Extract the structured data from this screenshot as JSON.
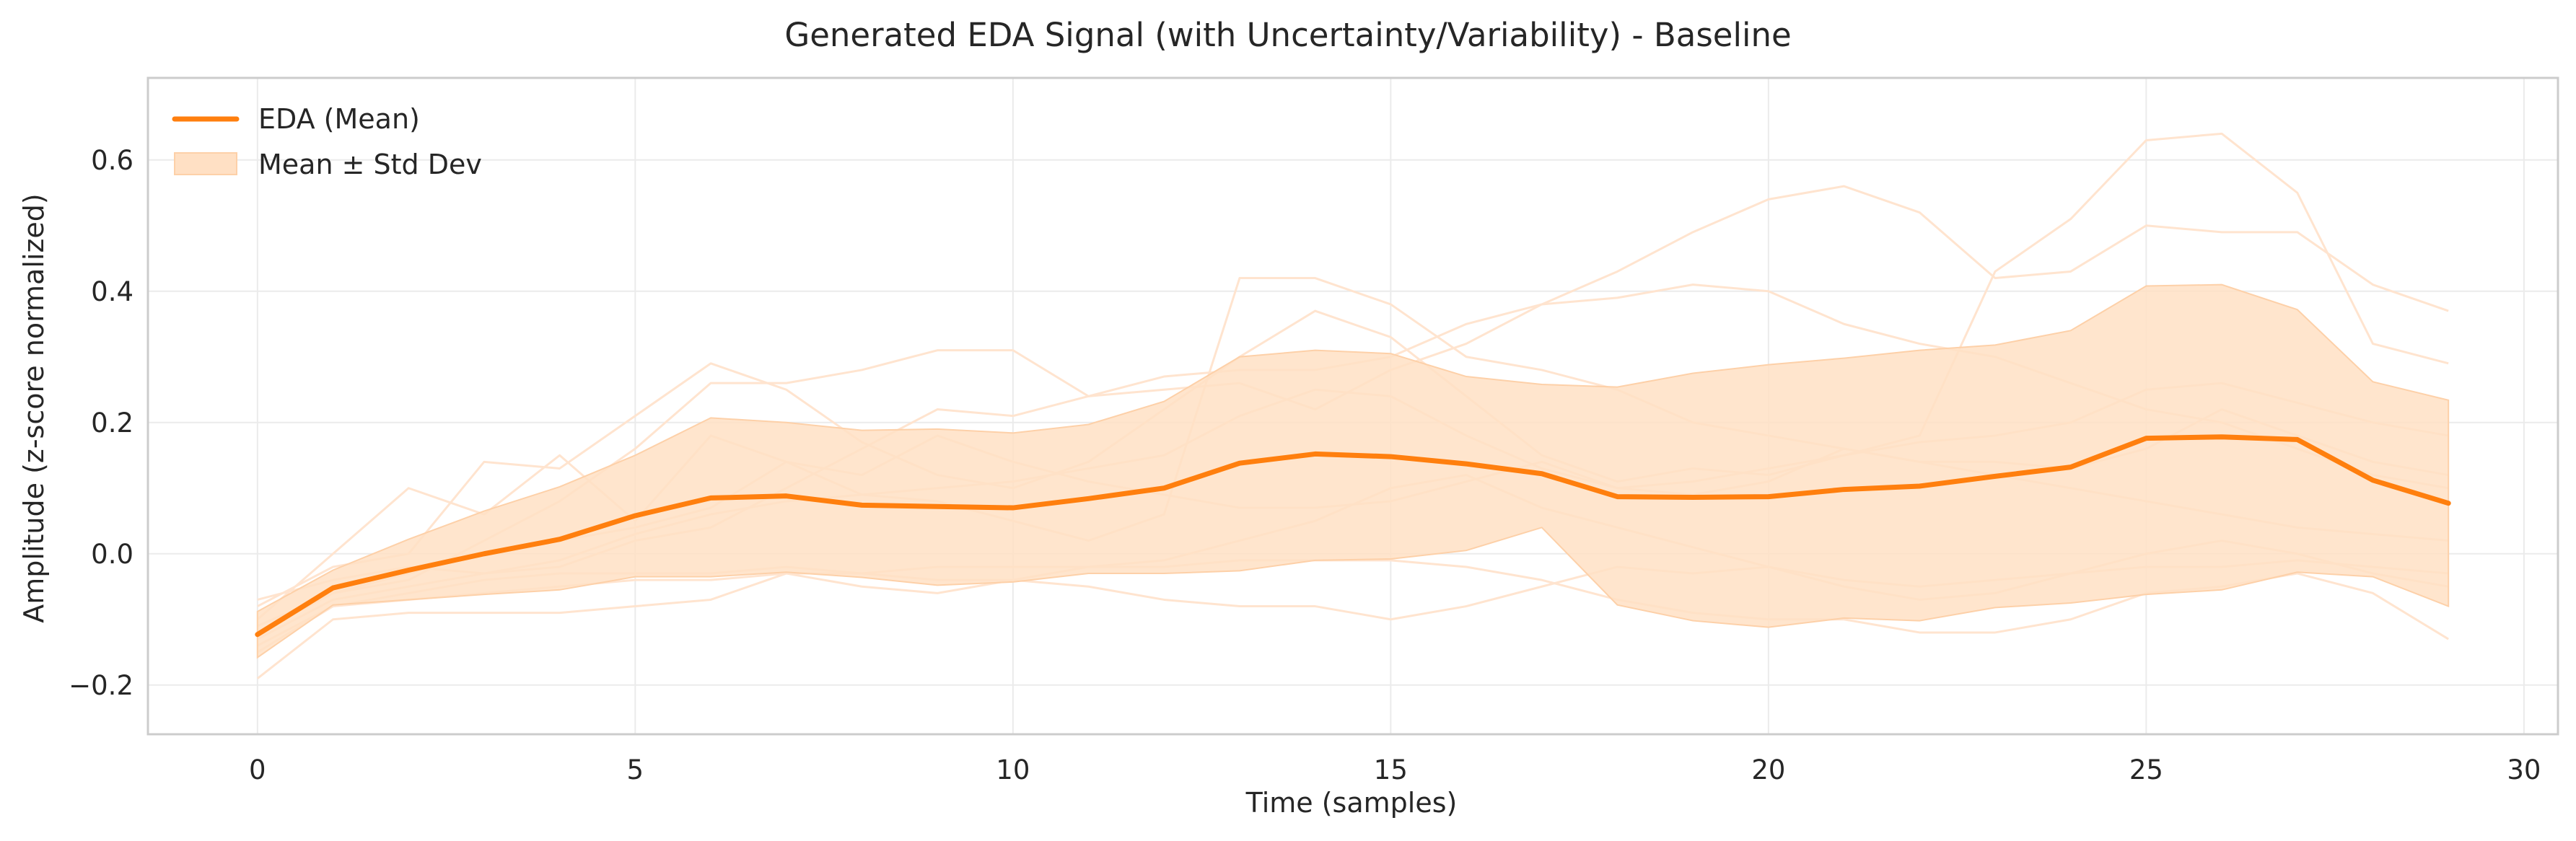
{
  "chart_data": {
    "type": "line",
    "title": "Generated EDA Signal (with Uncertainty/Variability) - Baseline",
    "xlabel": "Time (samples)",
    "ylabel": "Amplitude (z-score normalized)",
    "xlim": [
      -1.45,
      30.45
    ],
    "ylim": [
      -0.275,
      0.725
    ],
    "xticks": [
      0,
      5,
      10,
      15,
      20,
      25,
      30
    ],
    "xtick_labels": [
      "0",
      "5",
      "10",
      "15",
      "20",
      "25",
      "30"
    ],
    "yticks": [
      -0.2,
      0.0,
      0.2,
      0.4,
      0.6
    ],
    "ytick_labels": [
      "−0.2",
      "0.0",
      "0.2",
      "0.4",
      "0.6"
    ],
    "grid": true,
    "legend_position": "top-left",
    "colors": {
      "mean": "#ff7f0e",
      "band": "#ffe0c4",
      "band_edge": "#fdd0a8",
      "samples": "#ffe4cf",
      "frame": "#cccccc",
      "grid": "#ebebeb"
    },
    "x": [
      0,
      1,
      2,
      3,
      4,
      5,
      6,
      7,
      8,
      9,
      10,
      11,
      12,
      13,
      14,
      15,
      16,
      17,
      18,
      19,
      20,
      21,
      22,
      23,
      24,
      25,
      26,
      27,
      28,
      29
    ],
    "series": [
      {
        "name": "EDA (Mean)",
        "role": "mean",
        "values": [
          -0.123,
          -0.052,
          -0.025,
          0.0,
          0.022,
          0.058,
          0.085,
          0.088,
          0.074,
          0.072,
          0.07,
          0.084,
          0.1,
          0.138,
          0.152,
          0.148,
          0.137,
          0.122,
          0.087,
          0.086,
          0.087,
          0.098,
          0.103,
          0.118,
          0.132,
          0.176,
          0.178,
          0.174,
          0.112,
          0.077
        ]
      },
      {
        "name": "Mean ± Std Dev",
        "role": "band",
        "upper": [
          -0.088,
          -0.025,
          0.022,
          0.065,
          0.102,
          0.15,
          0.207,
          0.2,
          0.188,
          0.19,
          0.184,
          0.197,
          0.232,
          0.3,
          0.31,
          0.305,
          0.27,
          0.258,
          0.254,
          0.275,
          0.288,
          0.298,
          0.31,
          0.318,
          0.34,
          0.408,
          0.41,
          0.372,
          0.262,
          0.234
        ],
        "lower": [
          -0.158,
          -0.078,
          -0.07,
          -0.062,
          -0.055,
          -0.035,
          -0.035,
          -0.028,
          -0.036,
          -0.048,
          -0.043,
          -0.03,
          -0.03,
          -0.026,
          -0.01,
          -0.008,
          0.005,
          0.04,
          -0.078,
          -0.102,
          -0.112,
          -0.098,
          -0.102,
          -0.082,
          -0.075,
          -0.062,
          -0.055,
          -0.028,
          -0.035,
          -0.08
        ]
      },
      {
        "name": "",
        "role": "sample",
        "values": [
          -0.1,
          0.0,
          0.1,
          0.06,
          0.15,
          0.05,
          0.18,
          0.14,
          0.09,
          0.08,
          0.05,
          0.02,
          0.06,
          0.42,
          0.42,
          0.38,
          0.3,
          0.28,
          0.25,
          0.2,
          0.18,
          0.16,
          0.14,
          0.12,
          0.1,
          0.08,
          0.06,
          0.04,
          0.03,
          0.02
        ]
      },
      {
        "name": "",
        "role": "sample",
        "values": [
          -0.08,
          -0.02,
          0.0,
          0.14,
          0.13,
          0.21,
          0.29,
          0.25,
          0.17,
          0.12,
          0.1,
          0.14,
          0.22,
          0.3,
          0.37,
          0.33,
          0.24,
          0.15,
          0.11,
          0.13,
          0.12,
          0.15,
          0.18,
          0.43,
          0.51,
          0.63,
          0.64,
          0.55,
          0.32,
          0.29
        ]
      },
      {
        "name": "",
        "role": "sample",
        "values": [
          -0.12,
          -0.06,
          -0.04,
          0.02,
          0.08,
          0.16,
          0.26,
          0.26,
          0.28,
          0.31,
          0.31,
          0.24,
          0.25,
          0.26,
          0.22,
          0.28,
          0.32,
          0.38,
          0.43,
          0.49,
          0.54,
          0.56,
          0.52,
          0.42,
          0.43,
          0.5,
          0.49,
          0.49,
          0.41,
          0.37
        ]
      },
      {
        "name": "",
        "role": "sample",
        "values": [
          -0.19,
          -0.1,
          -0.09,
          -0.09,
          -0.09,
          -0.08,
          -0.07,
          -0.03,
          -0.05,
          -0.06,
          -0.04,
          -0.05,
          -0.07,
          -0.08,
          -0.08,
          -0.1,
          -0.08,
          -0.05,
          -0.02,
          -0.03,
          -0.02,
          -0.04,
          -0.05,
          -0.04,
          -0.03,
          -0.02,
          -0.02,
          -0.01,
          -0.02,
          -0.03
        ]
      },
      {
        "name": "",
        "role": "sample",
        "values": [
          -0.07,
          -0.04,
          -0.02,
          -0.03,
          -0.02,
          0.02,
          0.04,
          0.1,
          0.16,
          0.22,
          0.21,
          0.24,
          0.27,
          0.28,
          0.28,
          0.3,
          0.35,
          0.38,
          0.39,
          0.41,
          0.4,
          0.35,
          0.32,
          0.3,
          0.26,
          0.22,
          0.2,
          0.16,
          0.12,
          0.1
        ]
      },
      {
        "name": "",
        "role": "sample",
        "values": [
          -0.15,
          -0.08,
          -0.06,
          -0.04,
          -0.03,
          -0.03,
          -0.03,
          -0.02,
          -0.03,
          -0.04,
          -0.04,
          -0.02,
          -0.01,
          0.02,
          0.05,
          0.1,
          0.12,
          0.07,
          0.04,
          0.01,
          -0.02,
          -0.05,
          -0.07,
          -0.06,
          -0.03,
          0.0,
          0.02,
          0.0,
          -0.03,
          -0.05
        ]
      },
      {
        "name": "",
        "role": "sample",
        "values": [
          -0.11,
          -0.06,
          -0.03,
          0.0,
          0.02,
          0.04,
          0.07,
          0.14,
          0.12,
          0.18,
          0.14,
          0.11,
          0.09,
          0.07,
          0.07,
          0.08,
          0.11,
          0.14,
          0.1,
          0.09,
          0.11,
          0.16,
          0.14,
          0.14,
          0.13,
          0.16,
          0.22,
          0.18,
          0.14,
          0.12
        ]
      },
      {
        "name": "",
        "role": "sample",
        "values": [
          -0.14,
          -0.08,
          -0.07,
          -0.06,
          -0.05,
          -0.04,
          -0.04,
          -0.03,
          -0.03,
          -0.02,
          -0.02,
          -0.02,
          -0.02,
          -0.01,
          -0.01,
          -0.01,
          -0.02,
          -0.04,
          -0.07,
          -0.09,
          -0.1,
          -0.1,
          -0.12,
          -0.12,
          -0.1,
          -0.06,
          -0.05,
          -0.03,
          -0.06,
          -0.13
        ]
      },
      {
        "name": "",
        "role": "sample",
        "values": [
          -0.13,
          -0.07,
          -0.05,
          -0.03,
          -0.01,
          0.03,
          0.06,
          0.08,
          0.09,
          0.1,
          0.11,
          0.13,
          0.15,
          0.21,
          0.25,
          0.24,
          0.18,
          0.13,
          0.1,
          0.11,
          0.13,
          0.15,
          0.17,
          0.18,
          0.2,
          0.25,
          0.26,
          0.23,
          0.2,
          0.18
        ]
      }
    ]
  }
}
